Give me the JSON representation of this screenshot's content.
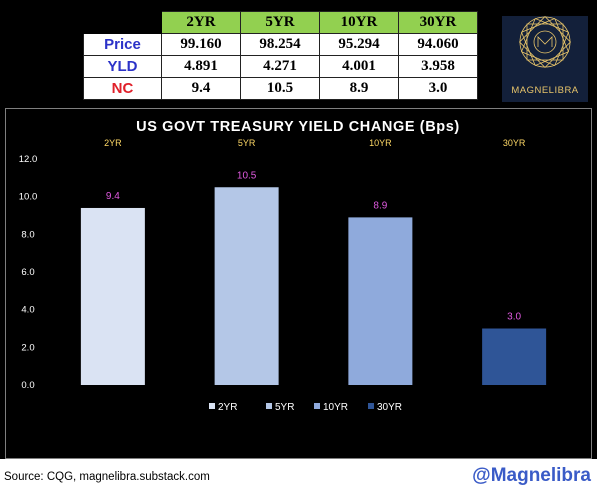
{
  "table": {
    "headers": [
      "2YR",
      "5YR",
      "10YR",
      "30YR"
    ],
    "rows": [
      {
        "label": "Price",
        "label_color": "#2b32c8",
        "values": [
          "99.160",
          "98.254",
          "95.294",
          "94.060"
        ]
      },
      {
        "label": "YLD",
        "label_color": "#2b32c8",
        "values": [
          "4.891",
          "4.271",
          "4.001",
          "3.958"
        ]
      },
      {
        "label": "NC",
        "label_color": "#e0202a",
        "values": [
          "9.4",
          "10.5",
          "8.9",
          "3.0"
        ]
      }
    ],
    "header_color": "#92d050"
  },
  "logo": {
    "text": "MAGNELIBRA",
    "color": "#e7c46a",
    "background": "#13203a"
  },
  "chart_data": {
    "type": "bar",
    "title": "US GOVT TREASURY YIELD CHANGE (Bps)",
    "categories": [
      "2YR",
      "5YR",
      "10YR",
      "30YR"
    ],
    "values": [
      9.4,
      10.5,
      8.9,
      3.0
    ],
    "data_labels": [
      "9.4",
      "10.5",
      "8.9",
      "3.0"
    ],
    "colors": [
      "#dae3f3",
      "#b4c7e7",
      "#8faadc",
      "#2f5597"
    ],
    "yticks": [
      "0.0",
      "2.0",
      "4.0",
      "6.0",
      "8.0",
      "10.0",
      "12.0"
    ],
    "ylim": [
      0,
      12
    ],
    "category_label_color": "#ffd966",
    "data_label_color": "#e05ae0",
    "legend": {
      "position": "bottom",
      "entries": [
        "2YR",
        "5YR",
        "10YR",
        "30YR"
      ]
    },
    "grid": false
  },
  "footer": {
    "source": "Source: CQG, magnelibra.substack.com",
    "handle": "@Magnelibra"
  }
}
